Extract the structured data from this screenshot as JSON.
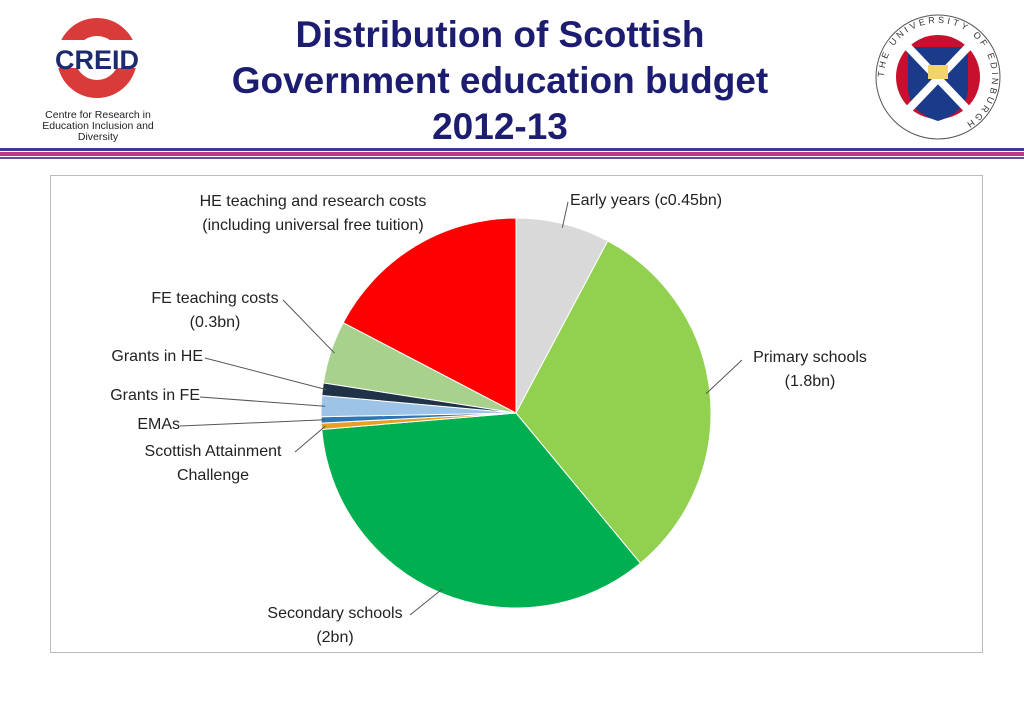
{
  "header": {
    "title": "Distribution of Scottish Government education budget 2012-13",
    "left_logo": {
      "name": "CREID",
      "caption": "Centre for Research in Education Inclusion and Diversity"
    },
    "right_logo": {
      "caption": "THE UNIVERSITY OF EDINBURGH"
    }
  },
  "chart_data": {
    "type": "pie",
    "categories": [
      "Early years (c0.45bn)",
      "Primary schools (1.8bn)",
      "Secondary schools (2bn)",
      "Scottish Attainment Challenge",
      "EMAs",
      "Grants in FE",
      "Grants in HE",
      "FE teaching costs (0.3bn)",
      "HE teaching and research costs (including universal free tuition)"
    ],
    "values": [
      0.45,
      1.8,
      2,
      0.03,
      0.03,
      0.1,
      0.06,
      0.3,
      1.0
    ],
    "colors": [
      "#d9d9d9",
      "#92d050",
      "#00b050",
      "#e8a020",
      "#2e75b6",
      "#9dc3e6",
      "#1f3247",
      "#a9d18e",
      "#ff0000"
    ]
  }
}
